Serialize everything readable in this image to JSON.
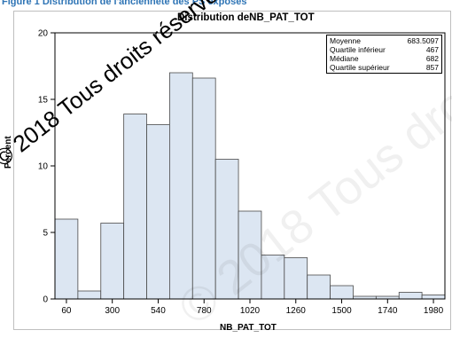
{
  "caption": "Figure 1 Distribution de l'ancienneté des PS exposés",
  "watermark": "© 2018 Tous droits réservés",
  "colors": {
    "bar_fill": "#dce6f2",
    "bar_stroke": "#4a4a4a",
    "axis": "#000000"
  },
  "chart_data": {
    "type": "bar",
    "title": "Distribution deNB_PAT_TOT",
    "xlabel": "NB_PAT_TOT",
    "ylabel": "Percent",
    "ylim": [
      0,
      20
    ],
    "yticks": [
      0,
      5,
      10,
      15,
      20
    ],
    "xticks": [
      60,
      300,
      540,
      780,
      1020,
      1260,
      1500,
      1740,
      1980
    ],
    "bin_width": 120,
    "categories": [
      60,
      180,
      300,
      420,
      540,
      660,
      780,
      900,
      1020,
      1140,
      1260,
      1380,
      1500,
      1620,
      1740,
      1860,
      1980
    ],
    "values": [
      6.0,
      0.6,
      5.7,
      13.9,
      13.1,
      17.0,
      16.6,
      10.5,
      6.6,
      3.3,
      3.1,
      1.8,
      1.0,
      0.2,
      0.2,
      0.5,
      0.3
    ],
    "grid": false,
    "stats_box": {
      "position": "top-right",
      "rows": [
        {
          "label": "Moyenne",
          "value": "683.5097"
        },
        {
          "label": "Quartile inférieur",
          "value": "467"
        },
        {
          "label": "Médiane",
          "value": "682"
        },
        {
          "label": "Quartile supérieur",
          "value": "857"
        }
      ]
    }
  }
}
